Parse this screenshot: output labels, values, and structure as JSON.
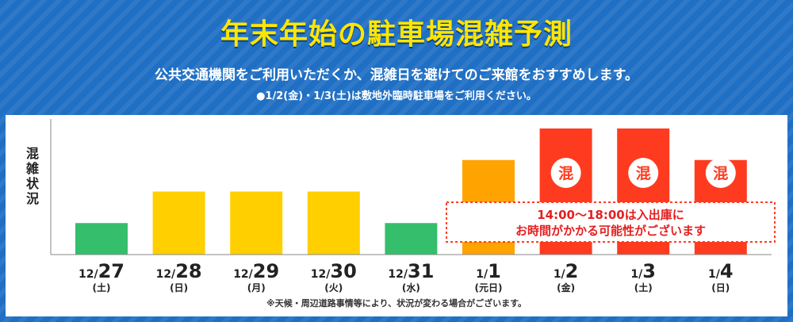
{
  "title": "年末年始の駐車場混雑予測",
  "subtitle": "公共交通機関をご利用いただくか、混雑日を避けてのご来館をおすすめします。",
  "note": "●1/2(金)・1/3(土)は敷地外臨時駐車場をご利用ください。",
  "footnote": "※天候・周辺道路事情等により、状況が変わる場合がございます。",
  "colors": {
    "background": "#1f6fc4",
    "title": "#ffe600",
    "low": "#35be6c",
    "medium": "#ffcf00",
    "high": "#ffa300",
    "very_high": "#ff3b1f"
  },
  "chart_data": {
    "type": "bar",
    "ylabel": "混雑状況",
    "categories": [
      {
        "prefix": "12/",
        "day": "27",
        "weekday": "(土)"
      },
      {
        "prefix": "12/",
        "day": "28",
        "weekday": "(日)"
      },
      {
        "prefix": "12/",
        "day": "29",
        "weekday": "(月)"
      },
      {
        "prefix": "12/",
        "day": "30",
        "weekday": "(火)"
      },
      {
        "prefix": "12/",
        "day": "31",
        "weekday": "(水)"
      },
      {
        "prefix": "1/",
        "day": "1",
        "weekday": "(元日)"
      },
      {
        "prefix": "1/",
        "day": "2",
        "weekday": "(金)"
      },
      {
        "prefix": "1/",
        "day": "3",
        "weekday": "(土)"
      },
      {
        "prefix": "1/",
        "day": "4",
        "weekday": "(日)"
      }
    ],
    "values": [
      1,
      2,
      2,
      2,
      1,
      3,
      4,
      4,
      3
    ],
    "value_colors": [
      "low",
      "medium",
      "medium",
      "medium",
      "low",
      "high",
      "very_high",
      "very_high",
      "very_high"
    ],
    "ylim": [
      0,
      4
    ],
    "badges": [
      "",
      "",
      "",
      "",
      "",
      "",
      "混",
      "混",
      "混"
    ],
    "callout": [
      "14:00〜18:00は入出庫に",
      "お時間がかかる可能性がございます"
    ]
  }
}
